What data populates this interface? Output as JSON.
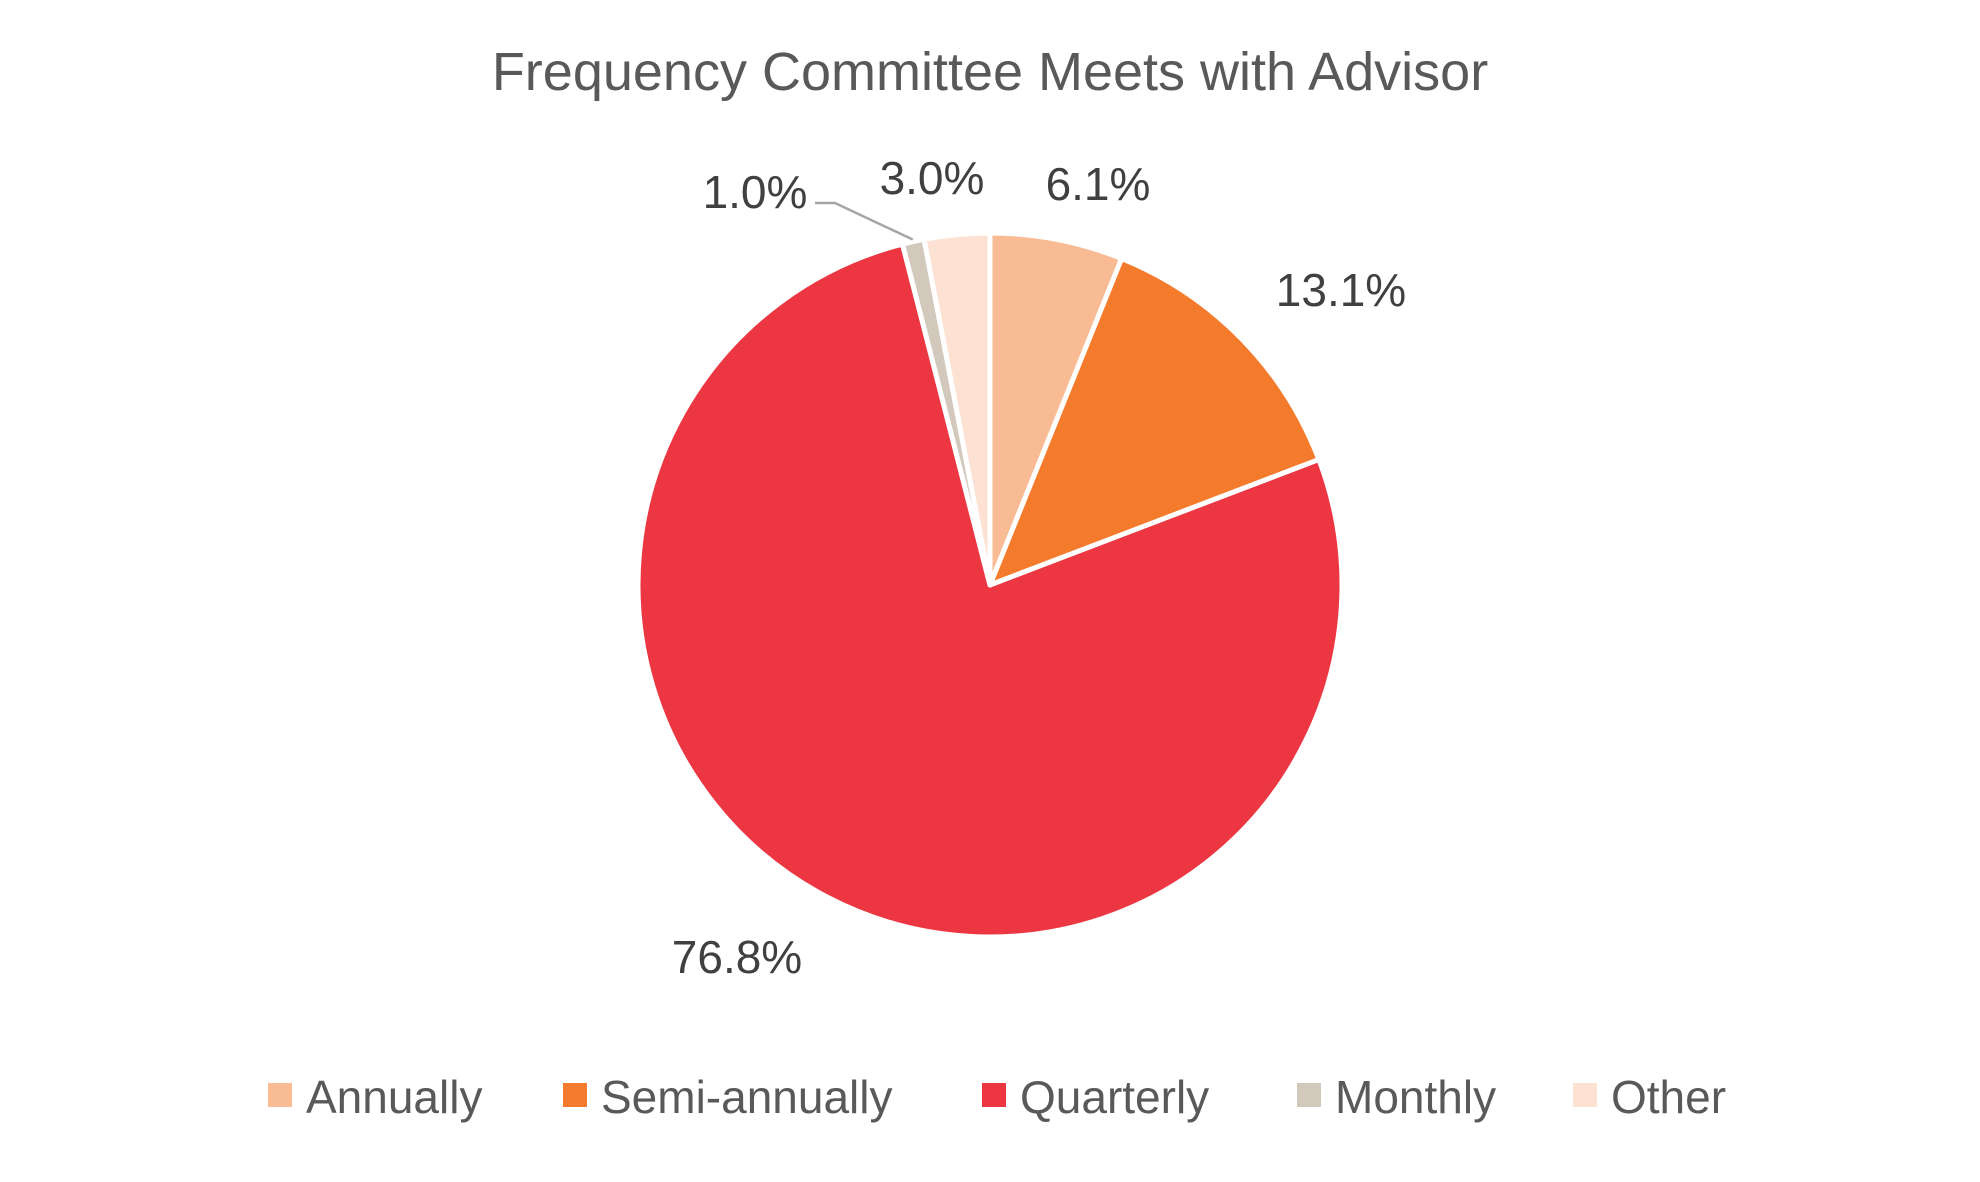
{
  "chart_data": {
    "type": "pie",
    "title": "Frequency Committee Meets with Advisor",
    "categories": [
      "Annually",
      "Semi-annually",
      "Quarterly",
      "Monthly",
      "Other"
    ],
    "values": [
      6.1,
      13.1,
      76.8,
      1.0,
      3.0
    ],
    "labels": [
      "6.1%",
      "13.1%",
      "76.8%",
      "1.0%",
      "3.0%"
    ],
    "colors": [
      "#F8BB93",
      "#F47B2C",
      "#EC3642",
      "#D3C8BC",
      "#FDE2D4"
    ],
    "start_angle": "12 o'clock",
    "direction": "clockwise",
    "legend_position": "bottom"
  }
}
